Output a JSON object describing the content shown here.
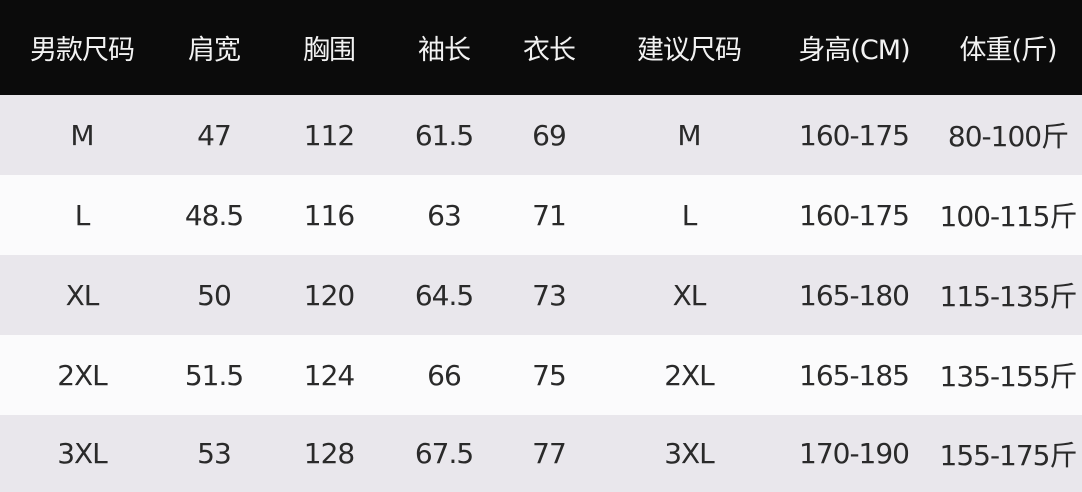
{
  "table": {
    "header": [
      "男款尺码",
      "肩宽",
      "胸围",
      "袖长",
      "衣长",
      "建议尺码",
      "身高(CM)",
      "体重(斤)"
    ],
    "rows": [
      [
        "M",
        "47",
        "112",
        "61.5",
        "69",
        "M",
        "160-175",
        "80-100斤"
      ],
      [
        "L",
        "48.5",
        "116",
        "63",
        "71",
        "L",
        "160-175",
        "100-115斤"
      ],
      [
        "XL",
        "50",
        "120",
        "64.5",
        "73",
        "XL",
        "165-180",
        "115-135斤"
      ],
      [
        "2XL",
        "51.5",
        "124",
        "66",
        "75",
        "2XL",
        "165-185",
        "135-155斤"
      ],
      [
        "3XL",
        "53",
        "128",
        "67.5",
        "77",
        "3XL",
        "170-190",
        "155-175斤"
      ]
    ]
  }
}
